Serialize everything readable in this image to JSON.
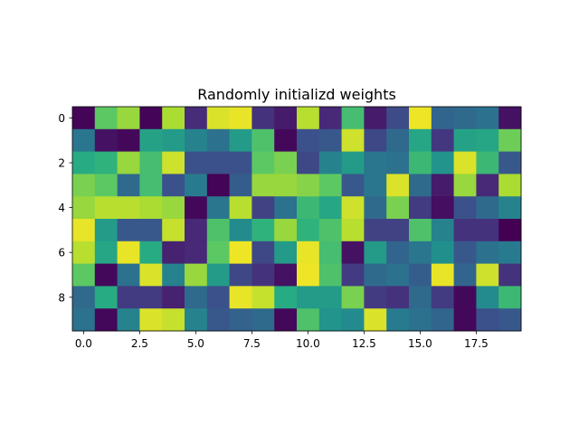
{
  "chart_data": {
    "type": "heatmap",
    "title": "Randomly initializd weights",
    "xlabel": "",
    "ylabel": "",
    "colormap": "viridis",
    "value_range": [
      0,
      1
    ],
    "rows": 10,
    "cols": 20,
    "xlim": [
      -0.5,
      19.5
    ],
    "ylim": [
      9.5,
      -0.5
    ],
    "x_ticks": [
      0.0,
      2.5,
      5.0,
      7.5,
      10.0,
      12.5,
      15.0,
      17.5
    ],
    "x_tick_labels": [
      "0.0",
      "2.5",
      "5.0",
      "7.5",
      "10.0",
      "12.5",
      "15.0",
      "17.5"
    ],
    "y_ticks": [
      0,
      2,
      4,
      6,
      8
    ],
    "y_tick_labels": [
      "0",
      "2",
      "4",
      "6",
      "8"
    ],
    "grid": false,
    "values": [
      [
        0.01,
        0.75,
        0.85,
        0.01,
        0.88,
        0.13,
        0.95,
        0.97,
        0.15,
        0.08,
        0.9,
        0.12,
        0.7,
        0.08,
        0.23,
        0.98,
        0.33,
        0.35,
        0.38,
        0.05
      ],
      [
        0.4,
        0.05,
        0.02,
        0.58,
        0.55,
        0.45,
        0.38,
        0.55,
        0.72,
        0.02,
        0.25,
        0.28,
        0.93,
        0.22,
        0.35,
        0.6,
        0.17,
        0.58,
        0.6,
        0.78
      ],
      [
        0.62,
        0.65,
        0.85,
        0.7,
        0.93,
        0.25,
        0.25,
        0.25,
        0.75,
        0.8,
        0.22,
        0.45,
        0.55,
        0.4,
        0.38,
        0.68,
        0.52,
        0.95,
        0.68,
        0.28
      ],
      [
        0.8,
        0.75,
        0.35,
        0.7,
        0.25,
        0.42,
        0.01,
        0.3,
        0.85,
        0.85,
        0.82,
        0.75,
        0.28,
        0.4,
        0.95,
        0.35,
        0.08,
        0.85,
        0.12,
        0.88
      ],
      [
        0.85,
        0.9,
        0.9,
        0.88,
        0.85,
        0.02,
        0.4,
        0.9,
        0.2,
        0.38,
        0.68,
        0.6,
        0.93,
        0.35,
        0.8,
        0.18,
        0.04,
        0.25,
        0.35,
        0.45
      ],
      [
        0.97,
        0.55,
        0.28,
        0.28,
        0.92,
        0.12,
        0.72,
        0.48,
        0.65,
        0.85,
        0.65,
        0.72,
        0.9,
        0.2,
        0.2,
        0.72,
        0.45,
        0.15,
        0.15,
        0.0
      ],
      [
        0.9,
        0.6,
        0.97,
        0.62,
        0.1,
        0.12,
        0.75,
        0.98,
        0.22,
        0.55,
        0.97,
        0.7,
        0.05,
        0.55,
        0.33,
        0.4,
        0.5,
        0.28,
        0.38,
        0.42
      ],
      [
        0.75,
        0.02,
        0.38,
        0.95,
        0.45,
        0.85,
        0.55,
        0.22,
        0.15,
        0.05,
        0.98,
        0.72,
        0.18,
        0.35,
        0.38,
        0.3,
        0.97,
        0.33,
        0.93,
        0.15
      ],
      [
        0.35,
        0.62,
        0.18,
        0.18,
        0.1,
        0.35,
        0.25,
        0.97,
        0.92,
        0.62,
        0.55,
        0.55,
        0.8,
        0.18,
        0.15,
        0.35,
        0.18,
        0.02,
        0.48,
        0.68
      ],
      [
        0.38,
        0.02,
        0.45,
        0.95,
        0.92,
        0.45,
        0.28,
        0.32,
        0.35,
        0.02,
        0.72,
        0.52,
        0.48,
        0.95,
        0.42,
        0.38,
        0.33,
        0.02,
        0.25,
        0.28
      ]
    ]
  }
}
